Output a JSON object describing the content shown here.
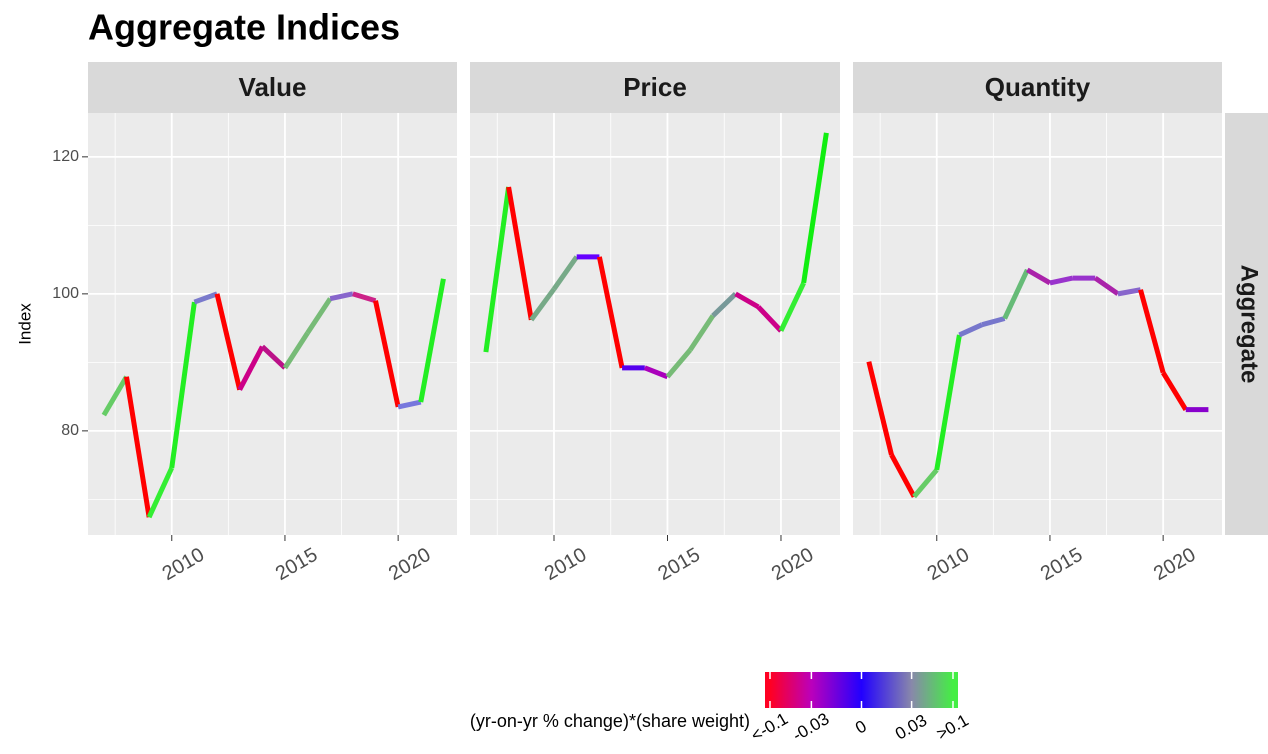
{
  "chart_data": {
    "type": "line",
    "title": "Aggregate Indices",
    "y_label": "Index",
    "strip_label": "Aggregate",
    "x": [
      2007,
      2008,
      2009,
      2010,
      2011,
      2012,
      2013,
      2014,
      2015,
      2016,
      2017,
      2018,
      2019,
      2020,
      2021,
      2022
    ],
    "xlim": [
      2006.3,
      2022.6
    ],
    "xticks": [
      2010,
      2015,
      2020
    ],
    "x_minor_grid": [
      2007.5,
      2012.5,
      2017.5
    ],
    "ylim": [
      64.8,
      126.4
    ],
    "yticks": [
      80,
      100,
      120
    ],
    "y_minor_grid": [
      70,
      90,
      110
    ],
    "grid": true,
    "panels": [
      {
        "name": "Value",
        "values": [
          82.3,
          87.9,
          67.4,
          74.6,
          98.8,
          100,
          86,
          92.3,
          89.2,
          94.3,
          99.3,
          100,
          99,
          83.5,
          84.2,
          102.2
        ],
        "colors": [
          "#66cc66",
          "#ff0000",
          "#33ee33",
          "#22ee22",
          "#7a7acc",
          "#ff0000",
          "#cc0088",
          "#bb1188",
          "#77bb77",
          "#77bb77",
          "#8866cc",
          "#cc2288",
          "#ff0000",
          "#7777dd",
          "#22ee22"
        ]
      },
      {
        "name": "Price",
        "values": [
          91.5,
          115.6,
          96.2,
          100.7,
          105.4,
          105.4,
          89.2,
          89.2,
          87.9,
          91.8,
          96.8,
          100,
          98.1,
          94.6,
          101.6,
          123.5
        ],
        "colors": [
          "#22ee22",
          "#ff0000",
          "#77aa88",
          "#77aa88",
          "#6600ff",
          "#ff0000",
          "#5500ee",
          "#aa00bb",
          "#77bb77",
          "#77bb77",
          "#779999",
          "#cc0088",
          "#cc0088",
          "#33ee33",
          "#11ee11"
        ]
      },
      {
        "name": "Quantity",
        "values": [
          90.1,
          76.5,
          70.4,
          74.3,
          94,
          95.5,
          96.4,
          103.5,
          101.6,
          102.3,
          102.3,
          100,
          100.6,
          88.5,
          83.1,
          83.1
        ],
        "colors": [
          "#ff0000",
          "#ff0000",
          "#66cc66",
          "#22ee22",
          "#7777cc",
          "#7777cc",
          "#66bb77",
          "#aa22aa",
          "#9933cc",
          "#9933cc",
          "#aa22aa",
          "#8866cc",
          "#ff0000",
          "#ff0000",
          "#8800cc"
        ]
      }
    ],
    "legend": {
      "title": "(yr-on-yr % change)*(share weight)",
      "ticks": [
        {
          "value": -0.1,
          "label": "<-0.1"
        },
        -0.03,
        0,
        0.03,
        {
          "value": 0.1,
          "label": ">0.1"
        }
      ],
      "colors": [
        "#ff0022",
        "#bb00bb",
        "#2200ff",
        "#8888aa",
        "#44ee44"
      ]
    }
  }
}
